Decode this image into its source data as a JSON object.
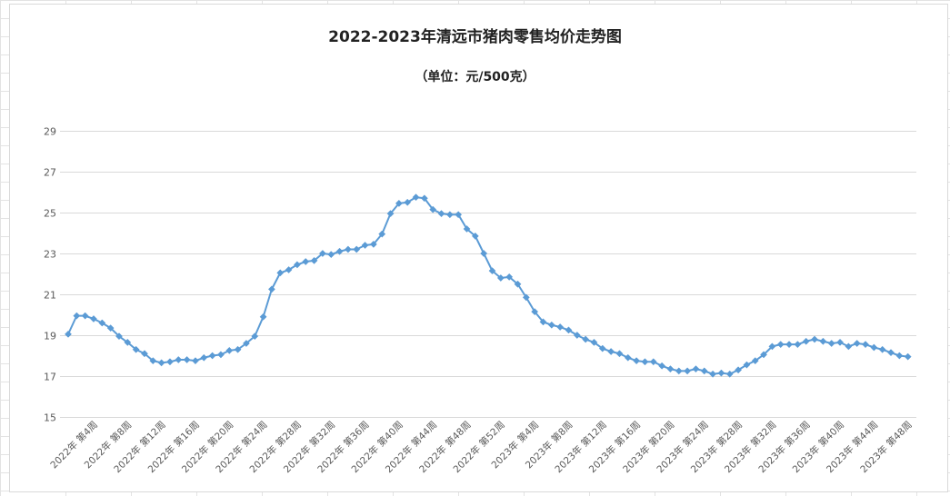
{
  "chart_data": {
    "type": "line",
    "title": "2022-2023年清远市猪肉零售均价走势图",
    "subtitle": "（单位：元/500克）",
    "xlabel": "",
    "ylabel": "",
    "ylim": [
      15,
      29
    ],
    "yticks": [
      "15",
      "17",
      "19",
      "21",
      "23",
      "25",
      "27",
      "29"
    ],
    "grid": true,
    "legend": "none",
    "x_ticks": [
      "2022年 第4周",
      "2022年 第8周",
      "2022年 第12周",
      "2022年 第16周",
      "2022年 第20周",
      "2022年 第24周",
      "2022年 第28周",
      "2022年 第32周",
      "2022年 第36周",
      "2022年 第40周",
      "2022年 第44周",
      "2022年 第48周",
      "2022年 第52周",
      "2023年 第4周",
      "2023年 第8周",
      "2023年 第12周",
      "2023年 第16周",
      "2023年 第20周",
      "2023年 第24周",
      "2023年 第28周",
      "2023年 第32周",
      "2023年 第36周",
      "2023年 第40周",
      "2023年 第44周",
      "2023年 第48周"
    ],
    "series": [
      {
        "color": "#5b9bd5",
        "values": [
          19.05,
          19.95,
          19.95,
          19.8,
          19.6,
          19.35,
          18.95,
          18.65,
          18.3,
          18.1,
          17.75,
          17.65,
          17.7,
          17.8,
          17.8,
          17.75,
          17.9,
          18.0,
          18.05,
          18.25,
          18.3,
          18.6,
          18.95,
          19.9,
          21.25,
          22.05,
          22.2,
          22.45,
          22.6,
          22.65,
          23.0,
          22.95,
          23.1,
          23.2,
          23.2,
          23.4,
          23.45,
          23.95,
          24.95,
          25.45,
          25.5,
          25.75,
          25.7,
          25.15,
          24.95,
          24.9,
          24.9,
          24.2,
          23.85,
          23.0,
          22.15,
          21.8,
          21.85,
          21.5,
          20.85,
          20.15,
          19.65,
          19.5,
          19.4,
          19.25,
          19.0,
          18.8,
          18.65,
          18.35,
          18.2,
          18.1,
          17.9,
          17.75,
          17.7,
          17.7,
          17.5,
          17.35,
          17.25,
          17.25,
          17.35,
          17.25,
          17.1,
          17.15,
          17.1,
          17.3,
          17.55,
          17.75,
          18.05,
          18.45,
          18.55,
          18.55,
          18.55,
          18.7,
          18.8,
          18.7,
          18.6,
          18.65,
          18.45,
          18.6,
          18.55,
          18.4,
          18.3,
          18.15,
          18.0,
          17.95
        ]
      }
    ]
  }
}
